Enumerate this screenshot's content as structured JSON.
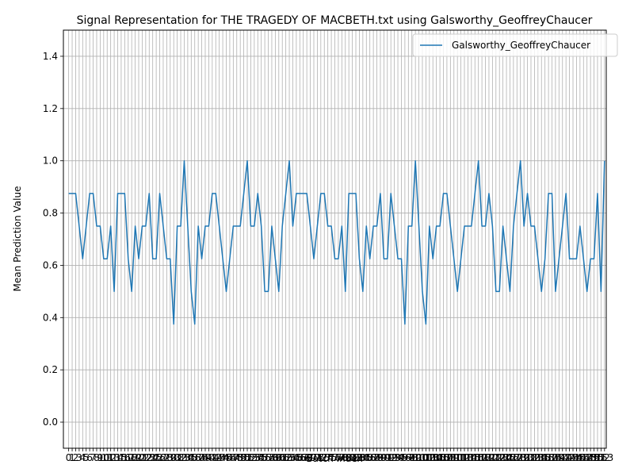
{
  "chart_data": {
    "type": "line",
    "title": "Signal Representation for THE TRAGEDY OF MACBETH.txt using Galsworthy_GeoffreyChaucer",
    "xlabel": "Batch Index",
    "ylabel": "Mean Prediction Value",
    "ylim": [
      -0.1,
      1.5
    ],
    "xlim": [
      -1.5,
      153.5
    ],
    "yticks": [
      "0.0",
      "0.2",
      "0.4",
      "0.6",
      "0.8",
      "1.0",
      "1.2",
      "1.4"
    ],
    "grid": true,
    "legend_position": "top-right",
    "x_tick_labels": [
      "0",
      "1",
      "2",
      "3",
      "4",
      "5",
      "6",
      "7",
      "8",
      "9",
      "10",
      "11",
      "12",
      "13",
      "14",
      "15",
      "16",
      "17",
      "18",
      "19",
      "20",
      "21",
      "22",
      "23",
      "24",
      "25",
      "26",
      "27",
      "28",
      "29",
      "30",
      "31",
      "32",
      "33",
      "34",
      "35",
      "36",
      "37",
      "38",
      "39",
      "40",
      "41",
      "42",
      "43",
      "44",
      "45",
      "46",
      "47",
      "48",
      "49",
      "50",
      "51",
      "52",
      "53",
      "54",
      "55",
      "56",
      "57",
      "58",
      "59",
      "60",
      "61",
      "62",
      "63",
      "64",
      "65",
      "66",
      "67",
      "68",
      "69",
      "70",
      "71",
      "72",
      "73",
      "74",
      "75",
      "76",
      "77",
      "78",
      "79",
      "80",
      "81",
      "82",
      "83",
      "84",
      "85",
      "86",
      "87",
      "88",
      "89",
      "90",
      "91",
      "92",
      "93",
      "94",
      "95",
      "96",
      "97",
      "98",
      "99",
      "100",
      "101",
      "102",
      "103",
      "104",
      "105",
      "106",
      "107",
      "108",
      "109",
      "110",
      "111",
      "112",
      "113",
      "114",
      "115",
      "116",
      "117",
      "118",
      "119",
      "120",
      "121",
      "122",
      "123",
      "124",
      "125",
      "126",
      "127",
      "128",
      "129",
      "130",
      "131",
      "132",
      "133",
      "134",
      "135",
      "136",
      "137",
      "138",
      "139",
      "140",
      "141",
      "142",
      "143",
      "144",
      "145",
      "146",
      "147",
      "148",
      "149",
      "150",
      "151",
      "152",
      "153"
    ],
    "series": [
      {
        "name": "Galsworthy_GeoffreyChaucer",
        "color": "#1f77b4",
        "x": [
          0,
          1,
          2,
          3,
          4,
          5,
          6,
          7,
          8,
          9,
          10,
          11,
          12,
          13,
          14,
          15,
          16,
          17,
          18,
          19,
          20,
          21,
          22,
          23,
          24,
          25,
          26,
          27,
          28,
          29,
          30,
          31,
          32,
          33,
          34,
          35,
          36,
          37,
          38,
          39,
          40,
          41,
          42,
          43,
          44,
          45,
          46,
          47,
          48,
          49,
          50,
          51,
          52,
          53,
          54,
          55,
          56,
          57,
          58,
          59,
          60,
          61,
          62,
          63,
          64,
          65,
          66,
          67,
          68,
          69,
          70,
          71,
          72,
          73,
          74,
          75,
          76,
          77,
          78,
          79,
          80,
          81,
          82,
          83,
          84,
          85,
          86,
          87,
          88,
          89,
          90,
          91,
          92,
          93,
          94,
          95,
          96,
          97,
          98,
          99,
          100,
          101,
          102,
          103,
          104,
          105,
          106,
          107,
          108,
          109,
          110,
          111,
          112,
          113,
          114,
          115,
          116,
          117,
          118,
          119,
          120,
          121,
          122,
          123,
          124,
          125,
          126,
          127,
          128,
          129,
          130,
          131,
          132,
          133,
          134,
          135,
          136,
          137,
          138,
          139,
          140,
          141,
          142,
          143,
          144,
          145,
          146,
          147,
          148,
          149,
          150,
          151,
          152,
          153
        ],
        "values": [
          0.875,
          0.875,
          0.875,
          0.75,
          0.625,
          0.75,
          0.875,
          0.875,
          0.75,
          0.75,
          0.625,
          0.625,
          0.75,
          0.5,
          0.875,
          0.875,
          0.875,
          0.625,
          0.5,
          0.75,
          0.625,
          0.75,
          0.75,
          0.875,
          0.625,
          0.625,
          0.875,
          0.75,
          0.625,
          0.625,
          0.375,
          0.75,
          0.75,
          1.0,
          0.75,
          0.5,
          0.375,
          0.75,
          0.625,
          0.75,
          0.75,
          0.875,
          0.875,
          0.75,
          0.625,
          0.5,
          0.625,
          0.75,
          0.75,
          0.75,
          0.875,
          1.0,
          0.75,
          0.75,
          0.875,
          0.75,
          0.5,
          0.5,
          0.75,
          0.625,
          0.5,
          0.75,
          0.875,
          1.0,
          0.75,
          0.875,
          0.875,
          0.875,
          0.875,
          0.75,
          0.625,
          0.75,
          0.875,
          0.875,
          0.75,
          0.75,
          0.625,
          0.625,
          0.75,
          0.5,
          0.875,
          0.875,
          0.875,
          0.625,
          0.5,
          0.75,
          0.625,
          0.75,
          0.75,
          0.875,
          0.625,
          0.625,
          0.875,
          0.75,
          0.625,
          0.625,
          0.375,
          0.75,
          0.75,
          1.0,
          0.75,
          0.5,
          0.375,
          0.75,
          0.625,
          0.75,
          0.75,
          0.875,
          0.875,
          0.75,
          0.625,
          0.5,
          0.625,
          0.75,
          0.75,
          0.75,
          0.875,
          1.0,
          0.75,
          0.75,
          0.875,
          0.75,
          0.5,
          0.5,
          0.75,
          0.625,
          0.5,
          0.75,
          0.875,
          1.0,
          0.75,
          0.875,
          0.75,
          0.75,
          0.625,
          0.5,
          0.625,
          0.875,
          0.875,
          0.5,
          0.625,
          0.75,
          0.875,
          0.625,
          0.625,
          0.625,
          0.75,
          0.625,
          0.5,
          0.625,
          0.625,
          0.875,
          0.5,
          1.0
        ]
      }
    ]
  }
}
